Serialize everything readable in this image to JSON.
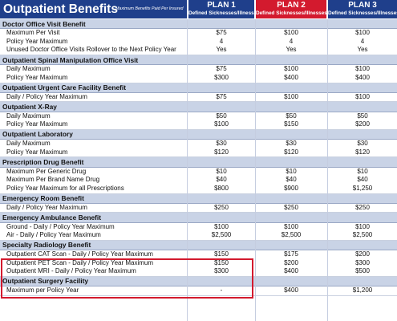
{
  "header": {
    "title": "Outpatient Benefits",
    "note": "Maximum Benefits Paid Per Insured",
    "plans": [
      {
        "name": "PLAN 1",
        "sub": "Defined Sicknesses/Illnesses"
      },
      {
        "name": "PLAN 2",
        "sub": "Defined Sicknesses/Illnesses"
      },
      {
        "name": "PLAN 3",
        "sub": "Defined Sicknesses/Illnesses"
      }
    ]
  },
  "colors": {
    "navy": "#1f3f8b",
    "red": "#d31a2e",
    "section_bg": "#c9d3e6"
  },
  "sections": [
    {
      "title": "Doctor Office Visit Benefit",
      "rows": [
        {
          "label": "Maximum Per Visit",
          "values": [
            "$75",
            "$100",
            "$100"
          ]
        },
        {
          "label": "Policy Year Maximum",
          "values": [
            "4",
            "4",
            "4"
          ]
        },
        {
          "label": "Unused Doctor Office Visits Rollover to the Next Policy Year",
          "values": [
            "Yes",
            "Yes",
            "Yes"
          ]
        }
      ]
    },
    {
      "title": "Outpatient Spinal Manipulation Office Visit",
      "rows": [
        {
          "label": "Daily Maximum",
          "values": [
            "$75",
            "$100",
            "$100"
          ]
        },
        {
          "label": "Policy Year Maximum",
          "values": [
            "$300",
            "$400",
            "$400"
          ]
        }
      ]
    },
    {
      "title": "Outpatient Urgent Care Facility Benefit",
      "rows": [
        {
          "label": "Daily / Policy Year Maximum",
          "values": [
            "$75",
            "$100",
            "$100"
          ]
        }
      ]
    },
    {
      "title": "Outpatient X-Ray",
      "rows": [
        {
          "label": "Daily Maximum",
          "values": [
            "$50",
            "$50",
            "$50"
          ]
        },
        {
          "label": "Policy Year Maximum",
          "values": [
            "$100",
            "$150",
            "$200"
          ]
        }
      ]
    },
    {
      "title": "Outpatient Laboratory",
      "rows": [
        {
          "label": "Daily Maximum",
          "values": [
            "$30",
            "$30",
            "$30"
          ]
        },
        {
          "label": "Policy Year Maximum",
          "values": [
            "$120",
            "$120",
            "$120"
          ]
        }
      ]
    },
    {
      "title": "Prescription Drug Benefit",
      "rows": [
        {
          "label": "Maximum Per Generic Drug",
          "values": [
            "$10",
            "$10",
            "$10"
          ]
        },
        {
          "label": "Maximum Per Brand Name Drug",
          "values": [
            "$40",
            "$40",
            "$40"
          ]
        },
        {
          "label": "Policy Year Maximum for all Prescriptions",
          "values": [
            "$800",
            "$900",
            "$1,250"
          ]
        }
      ]
    },
    {
      "title": "Emergency Room Benefit",
      "rows": [
        {
          "label": "Daily / Policy Year Maximum",
          "values": [
            "$250",
            "$250",
            "$250"
          ]
        }
      ]
    },
    {
      "title": "Emergency Ambulance Benefit",
      "rows": [
        {
          "label": "Ground - Daily / Policy Year Maximum",
          "values": [
            "$100",
            "$100",
            "$100"
          ]
        },
        {
          "label": "Air - Daily / Policy Year Maximum",
          "values": [
            "$2,500",
            "$2,500",
            "$2,500"
          ]
        }
      ]
    },
    {
      "title": "Specialty Radiology Benefit",
      "rows": [
        {
          "label": "Outpatient CAT Scan - Daily / Policy Year Maximum",
          "values": [
            "$150",
            "$175",
            "$200"
          ]
        },
        {
          "label": "Outpatient PET Scan - Daily / Policy Year Maximum",
          "values": [
            "$150",
            "$200",
            "$300"
          ]
        },
        {
          "label": "Outpatient MRI - Daily / Policy Year Maximum",
          "values": [
            "$300",
            "$400",
            "$500"
          ]
        }
      ]
    },
    {
      "title": "Outpatient Surgery Facility",
      "rows": [
        {
          "label": "Maximum per Policy Year",
          "values": [
            "-",
            "$400",
            "$1,200"
          ]
        }
      ]
    }
  ]
}
